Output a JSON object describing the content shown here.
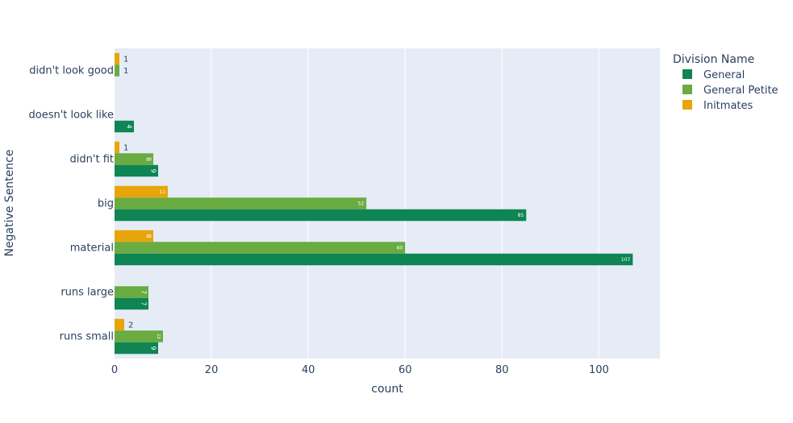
{
  "chart_data": {
    "type": "bar",
    "orientation": "horizontal",
    "title": "",
    "xlabel": "count",
    "ylabel": "Negative Sentence",
    "categories": [
      "didn't look good",
      "doesn't look like",
      "didn't fit",
      "big",
      "material",
      "runs large",
      "runs small"
    ],
    "xlim": [
      0,
      112.6
    ],
    "xticks": [
      0,
      20,
      40,
      60,
      80,
      100
    ],
    "grid": true,
    "legend": {
      "title": "Division Name",
      "placement": "right"
    },
    "series": [
      {
        "name": "General",
        "color": "#0e8553",
        "values": [
          null,
          4,
          9,
          85,
          107,
          7,
          9
        ]
      },
      {
        "name": "General Petite",
        "color": "#6aab42",
        "values": [
          1,
          null,
          8,
          52,
          60,
          7,
          10
        ]
      },
      {
        "name": "Initmates",
        "color": "#e8a50a",
        "values": [
          1,
          null,
          1,
          11,
          8,
          null,
          2
        ]
      }
    ]
  }
}
